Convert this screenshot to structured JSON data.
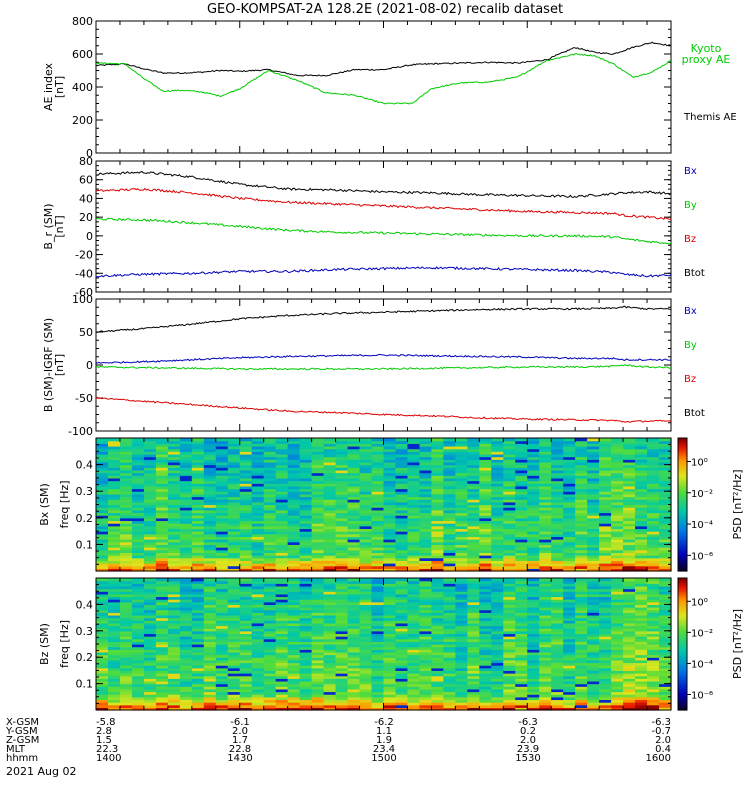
{
  "title": "GEO-KOMPSAT-2A 128.2E (2021-08-02) recalib dataset",
  "colors": {
    "black": "#000000",
    "red": "#dd0000",
    "green": "#00cc00",
    "blue": "#0000bb"
  },
  "chart_data": [
    {
      "type": "line",
      "panel": "AE index",
      "ylabel": "AE index",
      "yunit": "[nT]",
      "ylim": [
        0,
        800
      ],
      "yticks": [
        0,
        200,
        400,
        600,
        800
      ],
      "xlim": [
        0,
        120
      ],
      "xunit": "minutes after 14:00 UT",
      "series": [
        {
          "name": "Themis AE",
          "color": "#000000",
          "x": [
            0,
            6,
            10,
            14,
            18,
            22,
            26,
            30,
            36,
            42,
            48,
            54,
            60,
            66,
            70,
            76,
            82,
            88,
            94,
            100,
            104,
            108,
            112,
            116,
            120
          ],
          "y": [
            530,
            540,
            510,
            485,
            485,
            490,
            500,
            495,
            505,
            470,
            470,
            505,
            505,
            535,
            540,
            545,
            550,
            545,
            565,
            640,
            610,
            600,
            640,
            670,
            650
          ]
        },
        {
          "name": "Kyoto proxy AE",
          "color": "#00cc00",
          "x": [
            0,
            6,
            10,
            14,
            18,
            22,
            26,
            30,
            36,
            42,
            48,
            54,
            60,
            66,
            70,
            76,
            82,
            88,
            94,
            100,
            104,
            108,
            112,
            116,
            120
          ],
          "y": [
            545,
            540,
            450,
            375,
            380,
            370,
            345,
            390,
            500,
            440,
            365,
            350,
            300,
            300,
            390,
            425,
            430,
            460,
            560,
            600,
            590,
            540,
            460,
            490,
            560
          ]
        }
      ]
    },
    {
      "type": "line",
      "panel": "B_r (SM)",
      "ylabel": "B_r (SM)",
      "yunit": "[nT]",
      "ylim": [
        -60,
        80
      ],
      "yticks": [
        -60,
        -40,
        -20,
        0,
        20,
        40,
        60,
        80
      ],
      "xlim": [
        0,
        120
      ],
      "series": [
        {
          "name": "Btot",
          "color": "#000000",
          "x": [
            0,
            10,
            20,
            30,
            40,
            50,
            60,
            70,
            80,
            90,
            100,
            108,
            110,
            115,
            120
          ],
          "y": [
            66,
            68,
            63,
            55,
            50,
            49,
            47,
            46,
            44,
            43,
            42,
            45,
            46,
            47,
            45
          ]
        },
        {
          "name": "Bz",
          "color": "#dd0000",
          "x": [
            0,
            10,
            20,
            30,
            40,
            50,
            60,
            70,
            80,
            90,
            100,
            108,
            110,
            115,
            120
          ],
          "y": [
            48,
            50,
            46,
            40,
            36,
            34,
            32,
            30,
            28,
            26,
            25,
            24,
            22,
            20,
            18
          ]
        },
        {
          "name": "By",
          "color": "#00cc00",
          "x": [
            0,
            10,
            20,
            30,
            40,
            50,
            60,
            70,
            80,
            90,
            100,
            108,
            110,
            115,
            120
          ],
          "y": [
            18,
            17,
            14,
            10,
            6,
            4,
            3,
            2,
            1,
            0,
            0,
            -1,
            -3,
            -6,
            -8
          ]
        },
        {
          "name": "Bx",
          "color": "#0000bb",
          "x": [
            0,
            10,
            20,
            30,
            40,
            50,
            60,
            70,
            80,
            90,
            100,
            108,
            110,
            115,
            120
          ],
          "y": [
            -43,
            -41,
            -40,
            -38,
            -38,
            -36,
            -35,
            -34,
            -35,
            -36,
            -37,
            -39,
            -41,
            -43,
            -42
          ]
        }
      ]
    },
    {
      "type": "line",
      "panel": "B (SM)-IGRF (SM)",
      "ylabel": "B (SM)-IGRF (SM)",
      "yunit": "[nT]",
      "ylim": [
        -100,
        100
      ],
      "yticks": [
        -100,
        -50,
        0,
        50,
        100
      ],
      "xlim": [
        0,
        120
      ],
      "series": [
        {
          "name": "Btot",
          "color": "#000000",
          "x": [
            0,
            10,
            20,
            30,
            40,
            50,
            60,
            70,
            80,
            90,
            100,
            108,
            110,
            115,
            120
          ],
          "y": [
            50,
            55,
            62,
            70,
            75,
            78,
            80,
            82,
            84,
            85,
            85,
            86,
            88,
            85,
            85
          ]
        },
        {
          "name": "Bx",
          "color": "#0000bb",
          "x": [
            0,
            10,
            20,
            30,
            40,
            50,
            60,
            70,
            80,
            90,
            100,
            108,
            110,
            115,
            120
          ],
          "y": [
            3,
            5,
            8,
            11,
            13,
            14,
            15,
            14,
            13,
            12,
            10,
            10,
            8,
            8,
            8
          ]
        },
        {
          "name": "By",
          "color": "#00cc00",
          "x": [
            0,
            10,
            20,
            30,
            40,
            50,
            60,
            70,
            80,
            90,
            100,
            108,
            110,
            115,
            120
          ],
          "y": [
            -3,
            -4,
            -5,
            -6,
            -6,
            -6,
            -6,
            -5,
            -4,
            -3,
            -3,
            -2,
            0,
            -3,
            -4
          ]
        },
        {
          "name": "Bz",
          "color": "#dd0000",
          "x": [
            0,
            10,
            20,
            30,
            40,
            50,
            60,
            70,
            80,
            90,
            100,
            108,
            110,
            115,
            120
          ],
          "y": [
            -50,
            -55,
            -60,
            -65,
            -70,
            -72,
            -75,
            -77,
            -80,
            -82,
            -83,
            -84,
            -86,
            -85,
            -85
          ]
        }
      ]
    },
    {
      "type": "heatmap",
      "panel": "Bx (SM) spectrogram",
      "ylabel": "Bx (SM)",
      "ylabel2": "freq [Hz]",
      "ylim": [
        0,
        0.5
      ],
      "yticks": [
        "0.1",
        "0.2",
        "0.3",
        "0.4"
      ],
      "colorbar_label": "PSD [nT²/Hz]",
      "colorbar_ticks": [
        "10⁰",
        "10⁻²",
        "10⁻⁴",
        "10⁻⁶"
      ],
      "colorbar_exponents": [
        0,
        -2,
        -4,
        -6
      ],
      "colorbar_range": [
        -7,
        1.5
      ]
    },
    {
      "type": "heatmap",
      "panel": "Bz (SM) spectrogram",
      "ylabel": "Bz (SM)",
      "ylabel2": "freq [Hz]",
      "ylim": [
        0,
        0.5
      ],
      "yticks": [
        "0.1",
        "0.2",
        "0.3",
        "0.4"
      ],
      "colorbar_label": "PSD [nT²/Hz]",
      "colorbar_ticks": [
        "10⁰",
        "10⁻²",
        "10⁻⁴",
        "10⁻⁶"
      ],
      "colorbar_exponents": [
        0,
        -2,
        -4,
        -6
      ],
      "colorbar_range": [
        -7,
        1.5
      ]
    }
  ],
  "legends": {
    "ae": {
      "kyoto_line1": "Kyoto",
      "kyoto_line2": "proxy AE",
      "themis": "Themis AE"
    },
    "br": [
      "Bx",
      "By",
      "Bz",
      "Btot"
    ],
    "bdiff": [
      "Bx",
      "By",
      "Bz",
      "Btot"
    ]
  },
  "orbit_table": {
    "row_labels": [
      "X-GSM",
      "Y-GSM",
      "Z-GSM",
      "MLT",
      "hhmm"
    ],
    "columns": [
      {
        "values": [
          "-5.8",
          "2.8",
          "1.5",
          "22.3",
          "1400"
        ]
      },
      {
        "values": [
          "-6.1",
          "2.0",
          "1.7",
          "22.8",
          "1430"
        ]
      },
      {
        "values": [
          "-6.2",
          "1.1",
          "1.9",
          "23.4",
          "1500"
        ]
      },
      {
        "values": [
          "-6.3",
          "0.2",
          "2.0",
          "23.9",
          "1530"
        ]
      },
      {
        "values": [
          "-6.3",
          "-0.7",
          "2.0",
          "0.4",
          "1600"
        ]
      }
    ],
    "date": "2021 Aug 02"
  }
}
